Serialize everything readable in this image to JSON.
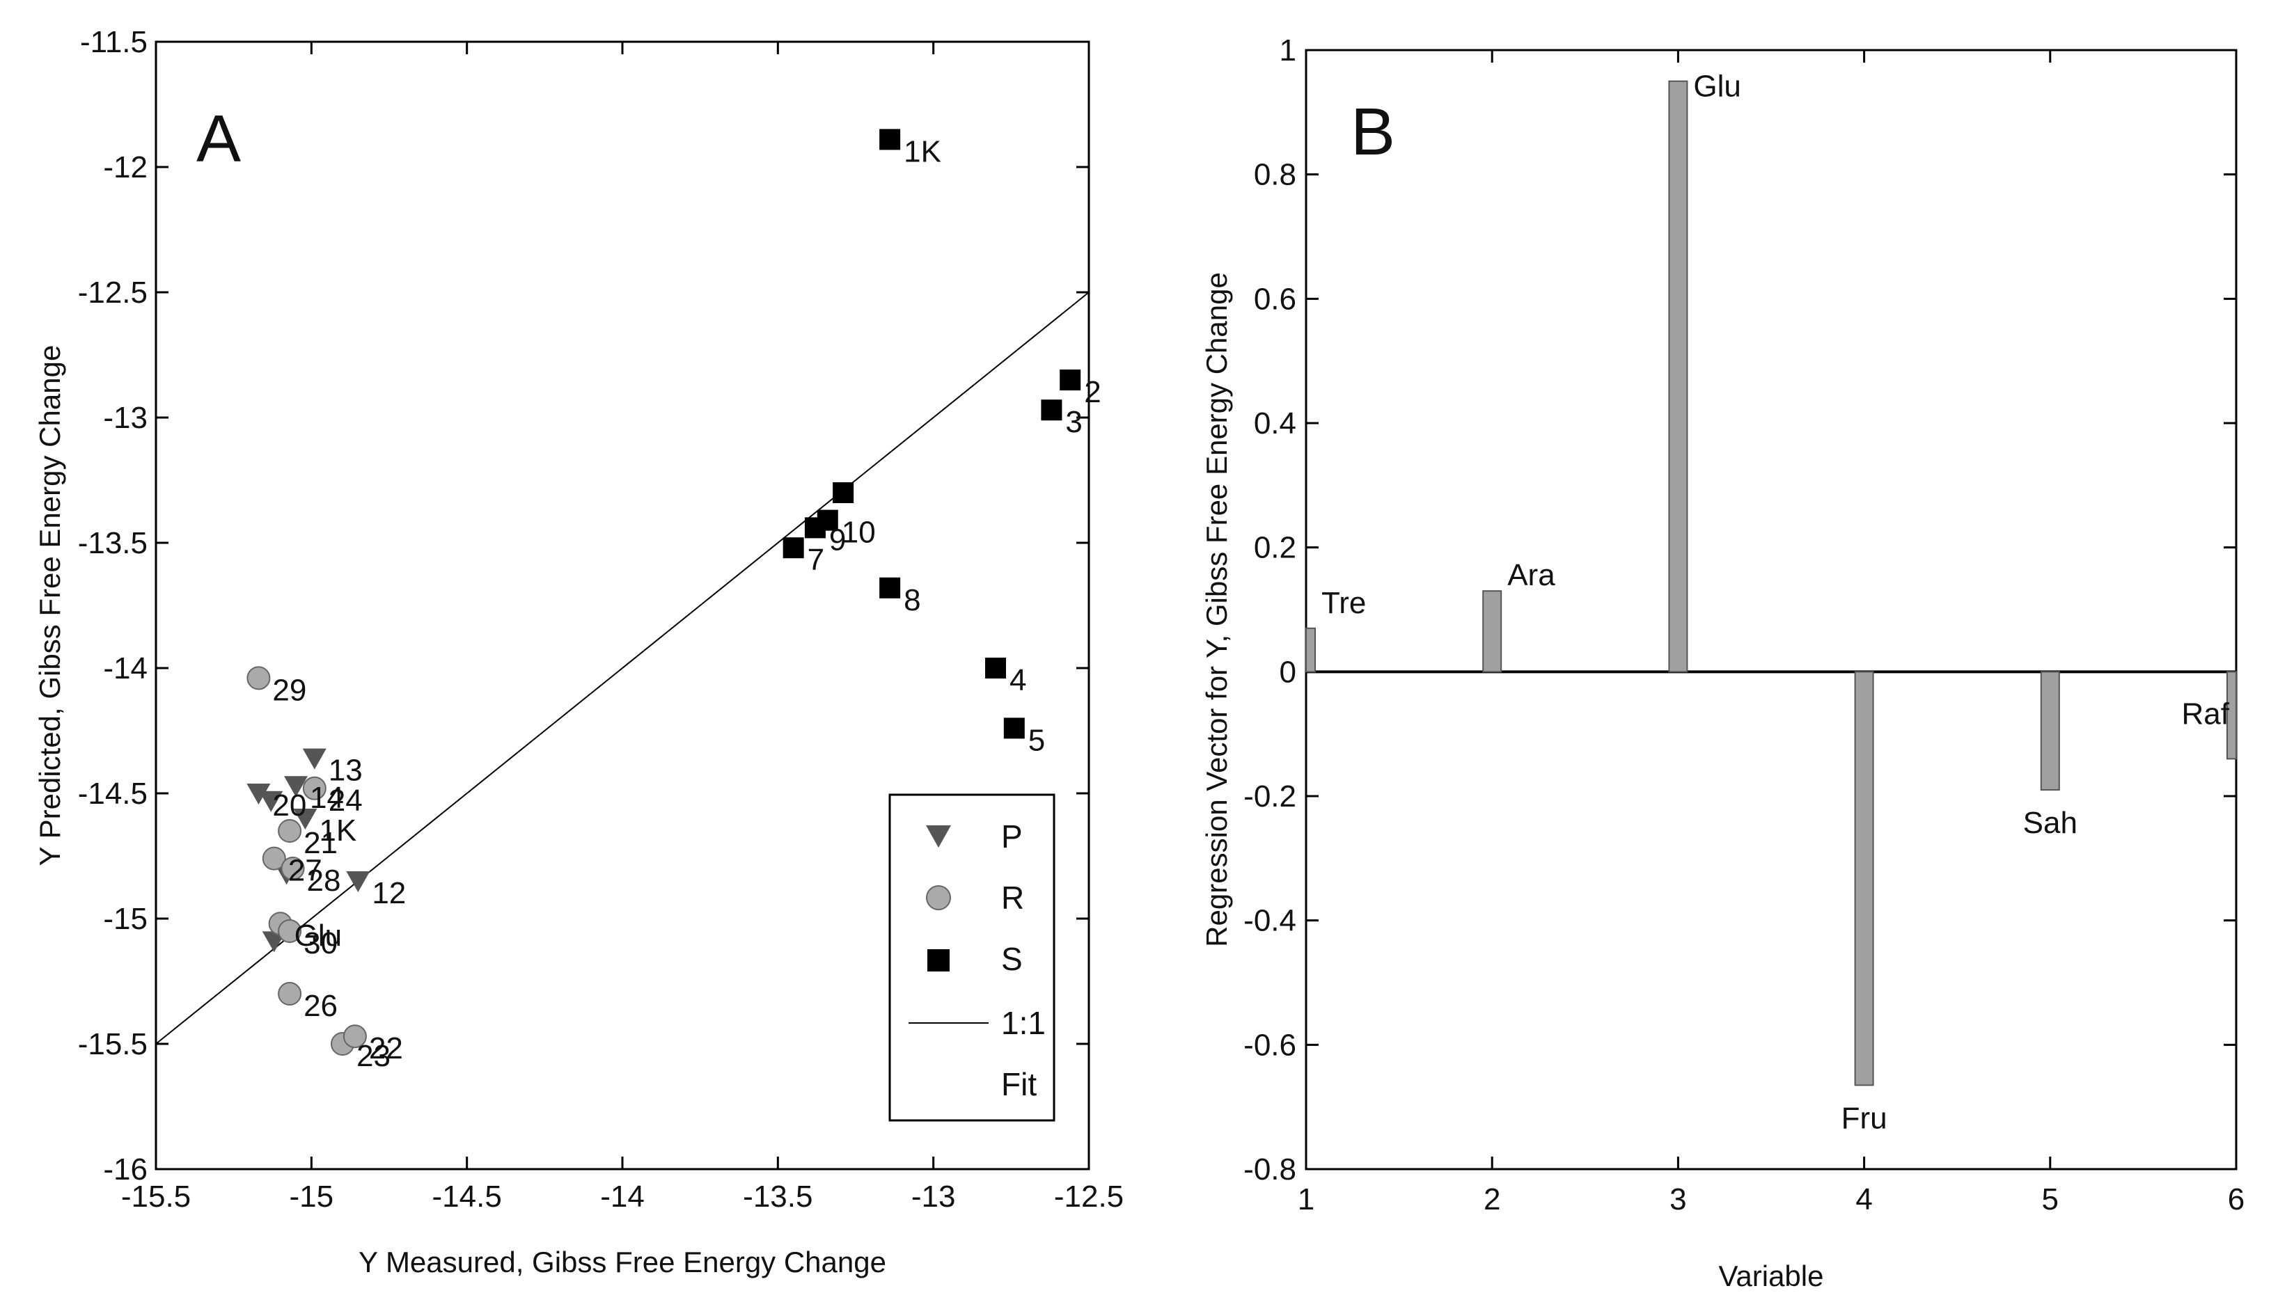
{
  "chart_data": [
    {
      "type": "scatter",
      "panel_label": "A",
      "xlabel": "Y Measured, Gibss Free Energy Change",
      "ylabel": "Y Predicted, Gibss Free Energy Change",
      "xlim": [
        -15.5,
        -12.5
      ],
      "ylim": [
        -16,
        -11.5
      ],
      "x_ticks": [
        "-15.5",
        "-15",
        "-14.5",
        "-14",
        "-13.5",
        "-13",
        "-12.5"
      ],
      "y_ticks": [
        "-11.5",
        "-12",
        "-12.5",
        "-13",
        "-13.5",
        "-14",
        "-14.5",
        "-15",
        "-15.5",
        "-16"
      ],
      "legend": {
        "placement": "bottom-right",
        "entries": [
          "P",
          "R",
          "S",
          "1:1",
          "Fit"
        ]
      },
      "series": [
        {
          "name": "P",
          "marker": "triangle-down",
          "color": "#555555",
          "points": [
            {
              "x": -14.99,
              "y": -14.36,
              "label": "13"
            },
            {
              "x": -15.17,
              "y": -14.5,
              "label": "20"
            },
            {
              "x": -15.05,
              "y": -14.47,
              "label": "14"
            },
            {
              "x": -15.13,
              "y": -14.53,
              "label": ""
            },
            {
              "x": -15.02,
              "y": -14.6,
              "label": "1K"
            },
            {
              "x": -14.85,
              "y": -14.85,
              "label": "12"
            },
            {
              "x": -15.08,
              "y": -14.82,
              "label": ""
            },
            {
              "x": -15.12,
              "y": -15.09,
              "label": ""
            }
          ]
        },
        {
          "name": "R",
          "marker": "circle",
          "color": "#aaaaaa",
          "points": [
            {
              "x": -15.17,
              "y": -14.04,
              "label": "29"
            },
            {
              "x": -14.99,
              "y": -14.48,
              "label": "24"
            },
            {
              "x": -15.07,
              "y": -14.65,
              "label": "21"
            },
            {
              "x": -15.12,
              "y": -14.76,
              "label": "27"
            },
            {
              "x": -15.06,
              "y": -14.8,
              "label": "28"
            },
            {
              "x": -15.1,
              "y": -15.02,
              "label": "Glu"
            },
            {
              "x": -15.07,
              "y": -15.05,
              "label": "30"
            },
            {
              "x": -15.07,
              "y": -15.3,
              "label": "26"
            },
            {
              "x": -14.9,
              "y": -15.5,
              "label": "23"
            },
            {
              "x": -14.86,
              "y": -15.47,
              "label": "22"
            }
          ]
        },
        {
          "name": "S",
          "marker": "square",
          "color": "#000000",
          "points": [
            {
              "x": -13.14,
              "y": -11.89,
              "label": "1K"
            },
            {
              "x": -12.56,
              "y": -12.85,
              "label": "2"
            },
            {
              "x": -12.62,
              "y": -12.97,
              "label": "3"
            },
            {
              "x": -13.29,
              "y": -13.3,
              "label": ""
            },
            {
              "x": -13.34,
              "y": -13.41,
              "label": "10"
            },
            {
              "x": -13.38,
              "y": -13.44,
              "label": "9"
            },
            {
              "x": -13.45,
              "y": -13.52,
              "label": "7"
            },
            {
              "x": -13.14,
              "y": -13.68,
              "label": "8"
            },
            {
              "x": -12.8,
              "y": -14.0,
              "label": "4"
            },
            {
              "x": -12.74,
              "y": -14.24,
              "label": "5"
            }
          ]
        }
      ],
      "reference_line": {
        "name": "1:1",
        "from": [
          -15.5,
          -15.5
        ],
        "to": [
          -12.5,
          -12.5
        ]
      }
    },
    {
      "type": "bar",
      "panel_label": "B",
      "xlabel": "Variable",
      "ylabel": "Regression Vector for Y, Gibss Free Energy Change",
      "xlim": [
        1,
        6
      ],
      "ylim": [
        -0.8,
        1
      ],
      "x_ticks": [
        "1",
        "2",
        "3",
        "4",
        "5",
        "6"
      ],
      "y_ticks": [
        "1",
        "0.8",
        "0.6",
        "0.4",
        "0.2",
        "0",
        "-0.2",
        "-0.4",
        "-0.6",
        "-0.8"
      ],
      "bar_color": "#a0a0a0",
      "bars": [
        {
          "x": 1,
          "value": 0.07,
          "label": "Tre"
        },
        {
          "x": 2,
          "value": 0.13,
          "label": "Ara"
        },
        {
          "x": 3,
          "value": 0.95,
          "label": "Glu"
        },
        {
          "x": 4,
          "value": -0.665,
          "label": "Fru"
        },
        {
          "x": 5,
          "value": -0.19,
          "label": "Sah"
        },
        {
          "x": 6,
          "value": -0.14,
          "label": "Raf"
        }
      ]
    }
  ]
}
